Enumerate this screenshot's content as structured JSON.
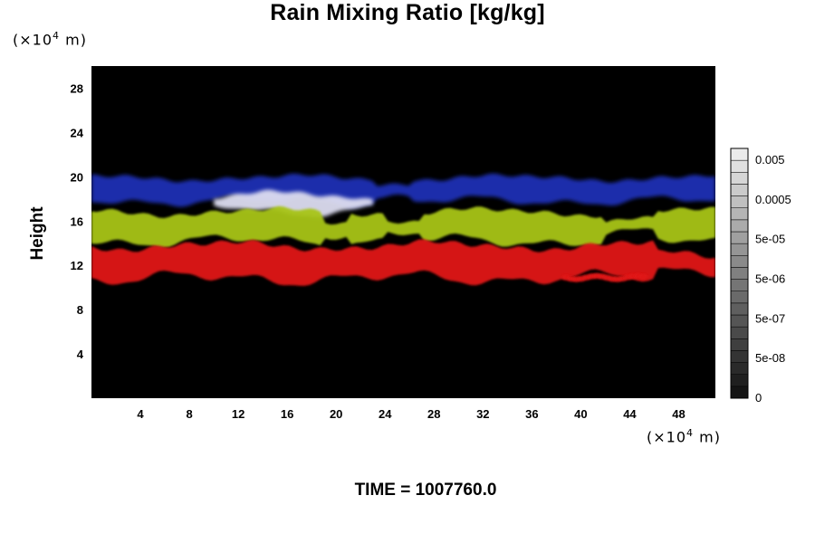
{
  "title": "Rain Mixing Ratio [kg/kg]",
  "footer": "TIME = 1007760.0",
  "chart_data": {
    "type": "heatmap",
    "title": "Rain Mixing Ratio [kg/kg]",
    "ylabel": "Height",
    "x_unit": {
      "prefix": "(×10",
      "exp": "4",
      "suffix": " m)"
    },
    "y_unit": {
      "prefix": "(×10",
      "exp": "4",
      "suffix": " m)"
    },
    "xlim": [
      0,
      51
    ],
    "ylim": [
      0,
      30
    ],
    "x_ticks": [
      4,
      8,
      12,
      16,
      20,
      24,
      28,
      32,
      36,
      40,
      44,
      48
    ],
    "y_ticks": [
      4,
      8,
      12,
      16,
      20,
      24,
      28
    ],
    "colorbar": {
      "labels": [
        "0",
        "5e-08",
        "5e-07",
        "5e-06",
        "5e-05",
        "0.0005",
        "0.005"
      ],
      "levels": 21
    },
    "layers": [
      {
        "name": "blue",
        "color": "#1e2fb4",
        "y_range": [
          17.5,
          20.2
        ]
      },
      {
        "name": "white",
        "color": "#dcdcf0",
        "y_range": [
          16.5,
          18.8
        ],
        "x_range": [
          10,
          23
        ]
      },
      {
        "name": "yellow-green",
        "color": "#a8c416",
        "y_range": [
          13.8,
          17.2
        ]
      },
      {
        "name": "red",
        "color": "#e01414",
        "y_range": [
          10.4,
          14.2
        ]
      }
    ]
  },
  "colors": {
    "background": "#000000",
    "blue": "#1e2fb4",
    "white": "#dcdcf0",
    "green": "#a8c416",
    "red": "#e01414"
  }
}
